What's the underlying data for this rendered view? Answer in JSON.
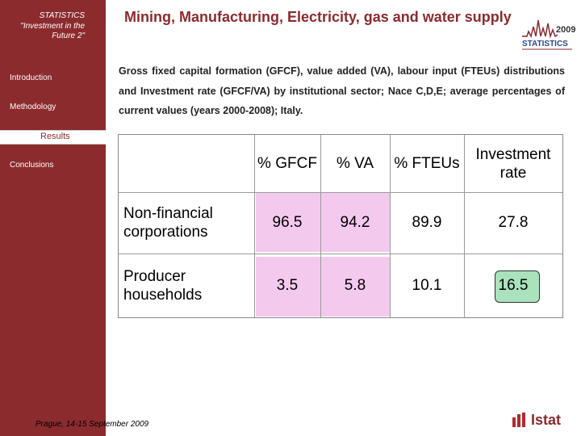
{
  "sidebar": {
    "title": "STATISTICS \"Investment in the Future 2\"",
    "items": [
      {
        "label": "Introduction"
      },
      {
        "label": "Methodology"
      },
      {
        "label": "Results"
      },
      {
        "label": "Conclusions"
      }
    ],
    "footer": "Prague, 14-15 September 2009"
  },
  "header": {
    "title": "Mining, Manufacturing, Electricity, gas and water supply",
    "subtitle": "Gross fixed capital formation (GFCF), value added (VA), labour input (FTEUs) distributions and Investment rate (GFCF/VA) by institutional sector; Nace C,D,E; average percentages of current values (years 2000-2008); Italy."
  },
  "logos": {
    "statistics_text": "STATISTICS",
    "statistics_year": "2009",
    "istat": "Istat"
  },
  "table": {
    "columns": [
      "% GFCF",
      "% VA",
      "% FTEUs",
      "Investment rate"
    ],
    "rows": [
      {
        "label": "Non-financial corporations",
        "values": [
          "96.5",
          "94.2",
          "89.9",
          "27.8"
        ]
      },
      {
        "label": "Producer households",
        "values": [
          "3.5",
          "5.8",
          "10.1",
          "16.5"
        ]
      }
    ]
  },
  "colors": {
    "brand": "#8c2b2e",
    "highlight_pink": "#f4c9ee",
    "highlight_green": "#a9e2bd"
  }
}
